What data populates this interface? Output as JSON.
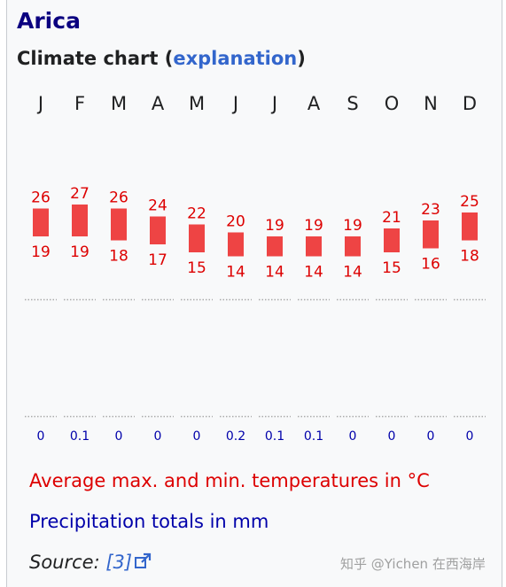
{
  "title": "Arica",
  "subtitle": {
    "prefix": "Climate chart (",
    "link": "explanation",
    "suffix": ")"
  },
  "legend": {
    "temperature": "Average max. and min. temperatures in °C",
    "precipitation": "Precipitation totals in mm"
  },
  "source": {
    "label": "Source:",
    "ref": "[3]"
  },
  "watermark": "知乎 @Yichen 在西海岸",
  "colors": {
    "temperature": "#dd0000",
    "bar": "#ee4444",
    "precipitation": "#0000aa",
    "title": "#0b0080",
    "link": "#3366cc",
    "frame_bg": "#f8f9fa",
    "frame_border": "#c8ccd1"
  },
  "chart_data": {
    "type": "climate",
    "categories": [
      "J",
      "F",
      "M",
      "A",
      "M",
      "J",
      "J",
      "A",
      "S",
      "O",
      "N",
      "D"
    ],
    "series": [
      {
        "name": "max",
        "values": [
          26,
          27,
          26,
          24,
          22,
          20,
          19,
          19,
          19,
          21,
          23,
          25
        ]
      },
      {
        "name": "min",
        "values": [
          19,
          19,
          18,
          17,
          15,
          14,
          14,
          14,
          14,
          15,
          16,
          18
        ]
      },
      {
        "name": "precipitation",
        "values": [
          0,
          0.1,
          0,
          0,
          0,
          0.2,
          0.1,
          0.1,
          0,
          0,
          0,
          0
        ]
      }
    ]
  }
}
